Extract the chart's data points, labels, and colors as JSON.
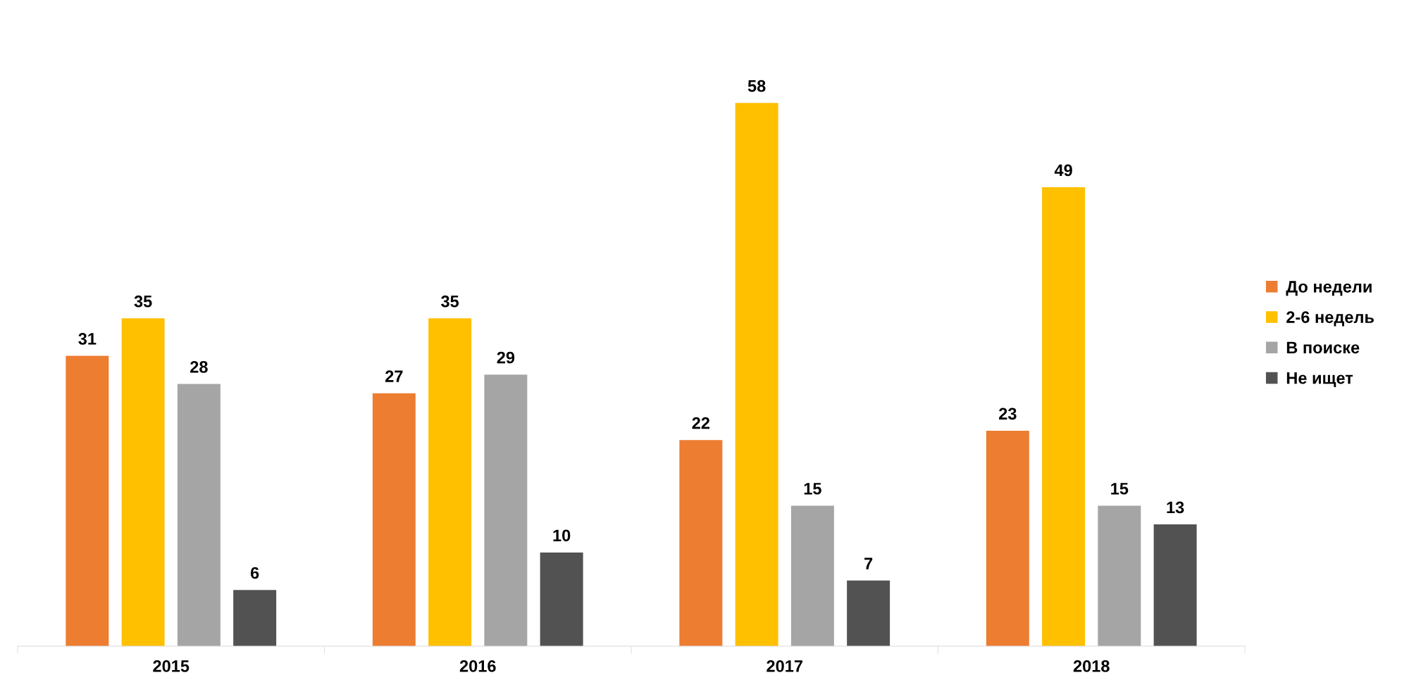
{
  "chart_data": {
    "type": "bar",
    "categories": [
      "2015",
      "2016",
      "2017",
      "2018"
    ],
    "series": [
      {
        "name": "До недели",
        "color": "#ed7d31",
        "values": [
          31,
          27,
          22,
          23
        ]
      },
      {
        "name": "2-6 недель",
        "color": "#ffc000",
        "values": [
          35,
          35,
          58,
          49
        ]
      },
      {
        "name": "В поиске",
        "color": "#a5a5a5",
        "values": [
          28,
          29,
          15,
          15
        ]
      },
      {
        "name": "Не ищет",
        "color": "#525252",
        "values": [
          6,
          10,
          7,
          13
        ]
      }
    ],
    "data_labels": true,
    "legend": "right",
    "grid": false
  }
}
